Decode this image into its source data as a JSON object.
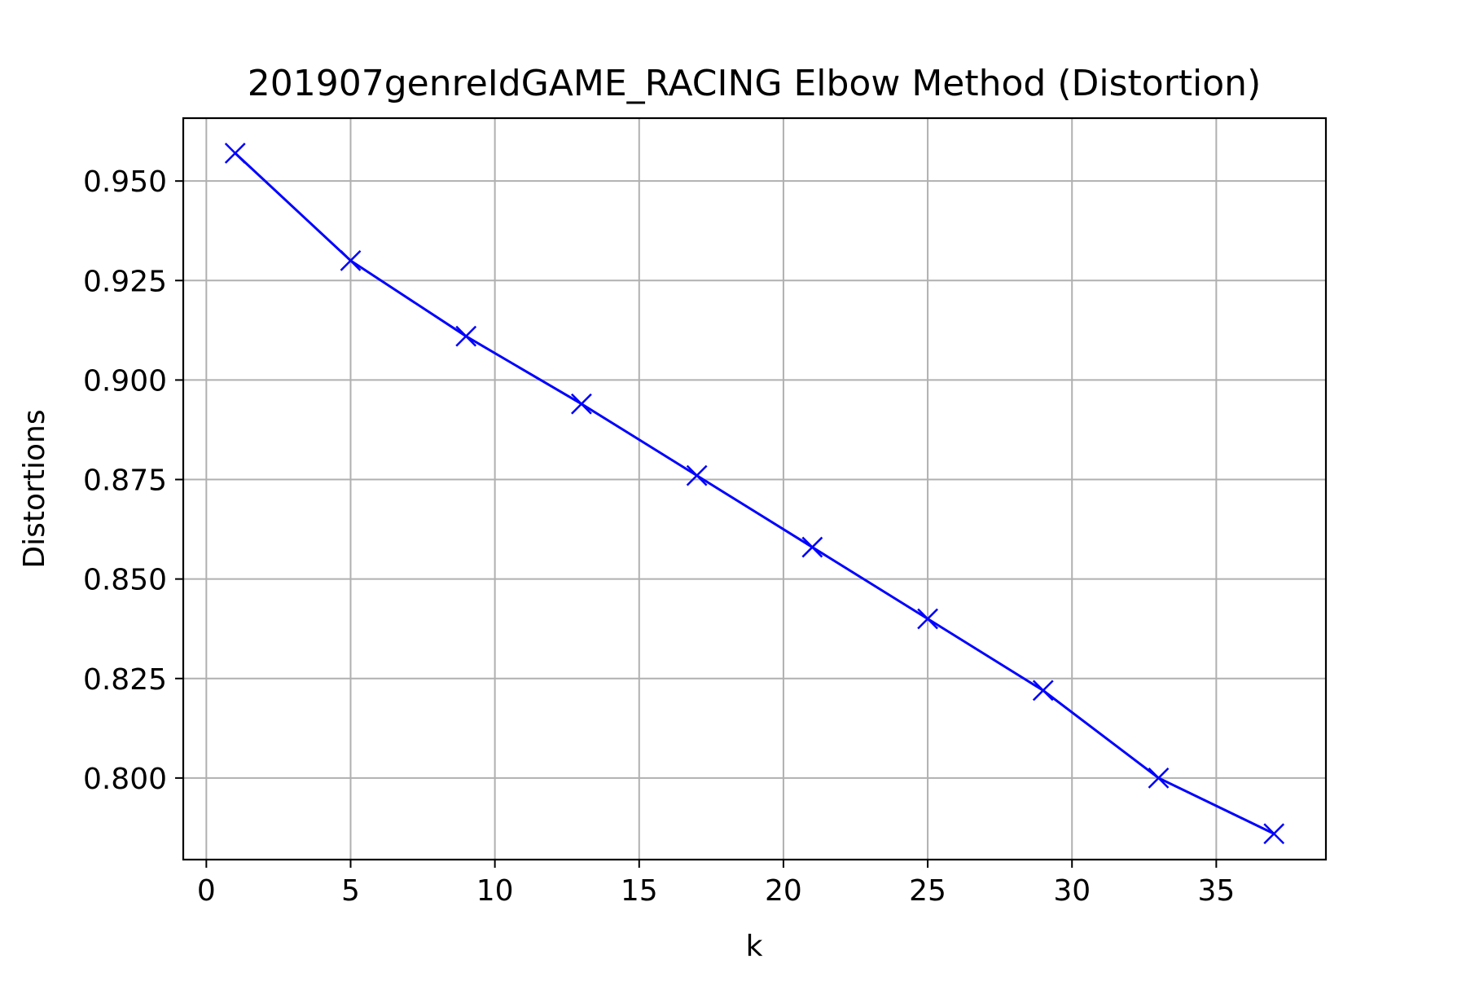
{
  "chart_data": {
    "type": "line",
    "title": "201907genreIdGAME_RACING Elbow Method (Distortion)",
    "xlabel": "k",
    "ylabel": "Distortions",
    "xlim": [
      -0.8,
      38.8
    ],
    "ylim": [
      0.7795,
      0.9658
    ],
    "xticks": [
      0,
      5,
      10,
      15,
      20,
      25,
      30,
      35
    ],
    "yticks": [
      0.8,
      0.825,
      0.85,
      0.875,
      0.9,
      0.925,
      0.95
    ],
    "ytick_labels": [
      "0.800",
      "0.825",
      "0.850",
      "0.875",
      "0.900",
      "0.925",
      "0.950"
    ],
    "grid": true,
    "line_color": "#0000ff",
    "grid_color": "#b0b0b0",
    "marker": "x",
    "series": [
      {
        "x": [
          1,
          5,
          9,
          13,
          17,
          21,
          25,
          29,
          33,
          37
        ],
        "y": [
          0.957,
          0.93,
          0.911,
          0.894,
          0.876,
          0.858,
          0.84,
          0.822,
          0.8,
          0.786
        ]
      }
    ]
  }
}
